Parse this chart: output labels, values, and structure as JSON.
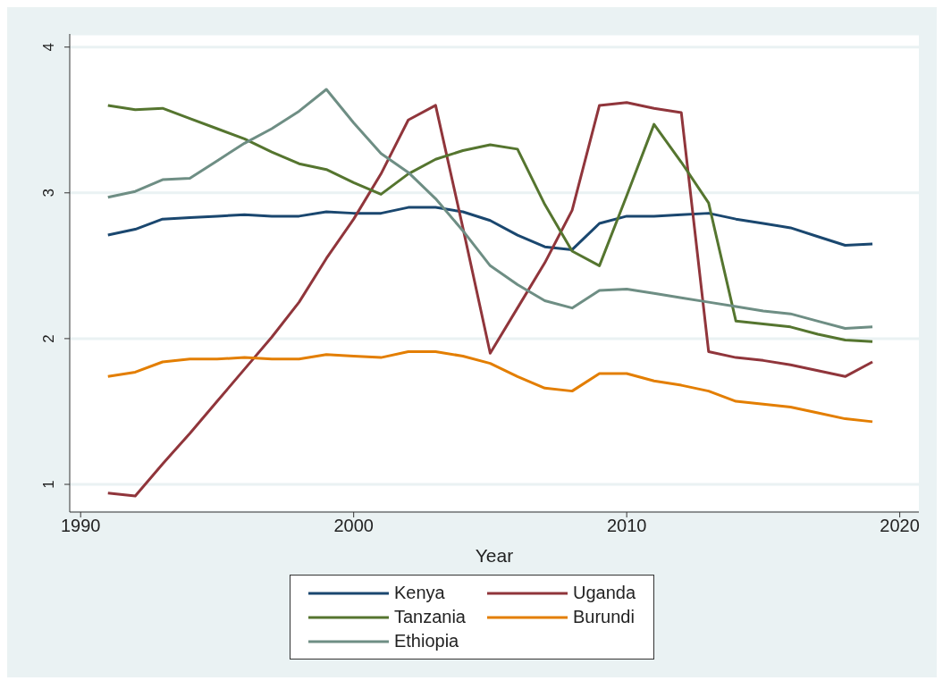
{
  "chart_data": {
    "type": "line",
    "xlabel": "Year",
    "x": [
      1991,
      1992,
      1993,
      1994,
      1995,
      1996,
      1997,
      1998,
      1999,
      2000,
      2001,
      2002,
      2003,
      2004,
      2005,
      2006,
      2007,
      2008,
      2009,
      2010,
      2011,
      2012,
      2013,
      2014,
      2015,
      2016,
      2017,
      2018,
      2019
    ],
    "series": [
      {
        "name": "Kenya",
        "color": "#1a476f",
        "values": [
          2.71,
          2.75,
          2.82,
          2.83,
          2.84,
          2.85,
          2.84,
          2.84,
          2.87,
          2.86,
          2.86,
          2.9,
          2.9,
          2.87,
          2.81,
          2.71,
          2.63,
          2.61,
          2.79,
          2.84,
          2.84,
          2.85,
          2.86,
          2.82,
          2.79,
          2.76,
          2.7,
          2.64,
          2.65
        ]
      },
      {
        "name": "Uganda",
        "color": "#90353b",
        "values": [
          0.94,
          0.92,
          1.14,
          1.35,
          1.57,
          1.79,
          2.01,
          2.25,
          2.55,
          2.82,
          3.13,
          3.5,
          3.6,
          2.76,
          1.9,
          2.21,
          2.52,
          2.88,
          3.6,
          3.62,
          3.58,
          3.55,
          1.91,
          1.87,
          1.85,
          1.82,
          1.78,
          1.74,
          1.84
        ]
      },
      {
        "name": "Tanzania",
        "color": "#55752f",
        "values": [
          3.6,
          3.57,
          3.58,
          3.51,
          3.44,
          3.37,
          3.28,
          3.2,
          3.16,
          3.07,
          2.99,
          3.13,
          3.23,
          3.29,
          3.33,
          3.3,
          2.92,
          2.6,
          2.5,
          2.98,
          3.47,
          3.21,
          2.93,
          2.12,
          2.1,
          2.08,
          2.03,
          1.99,
          1.98
        ]
      },
      {
        "name": "Burundi",
        "color": "#e37e00",
        "values": [
          1.74,
          1.77,
          1.84,
          1.86,
          1.86,
          1.87,
          1.86,
          1.86,
          1.89,
          1.88,
          1.87,
          1.91,
          1.91,
          1.88,
          1.83,
          1.74,
          1.66,
          1.64,
          1.76,
          1.76,
          1.71,
          1.68,
          1.64,
          1.57,
          1.55,
          1.53,
          1.49,
          1.45,
          1.43
        ]
      },
      {
        "name": "Ethiopia",
        "color": "#6e8e84",
        "values": [
          2.97,
          3.01,
          3.09,
          3.1,
          3.22,
          3.34,
          3.44,
          3.56,
          3.71,
          3.48,
          3.27,
          3.14,
          2.96,
          2.74,
          2.5,
          2.37,
          2.26,
          2.21,
          2.33,
          2.34,
          2.31,
          2.28,
          2.25,
          2.22,
          2.19,
          2.17,
          2.12,
          2.07,
          2.08
        ]
      }
    ],
    "xlim": [
      1989.6,
      2020.7
    ],
    "xticks": [
      1990,
      2000,
      2010,
      2020
    ],
    "ylim": [
      0.81,
      4.09
    ],
    "yticks": [
      1,
      2,
      3,
      4
    ],
    "grid": "y",
    "legend": "bottom",
    "marker": "none",
    "line_style": "solid"
  }
}
